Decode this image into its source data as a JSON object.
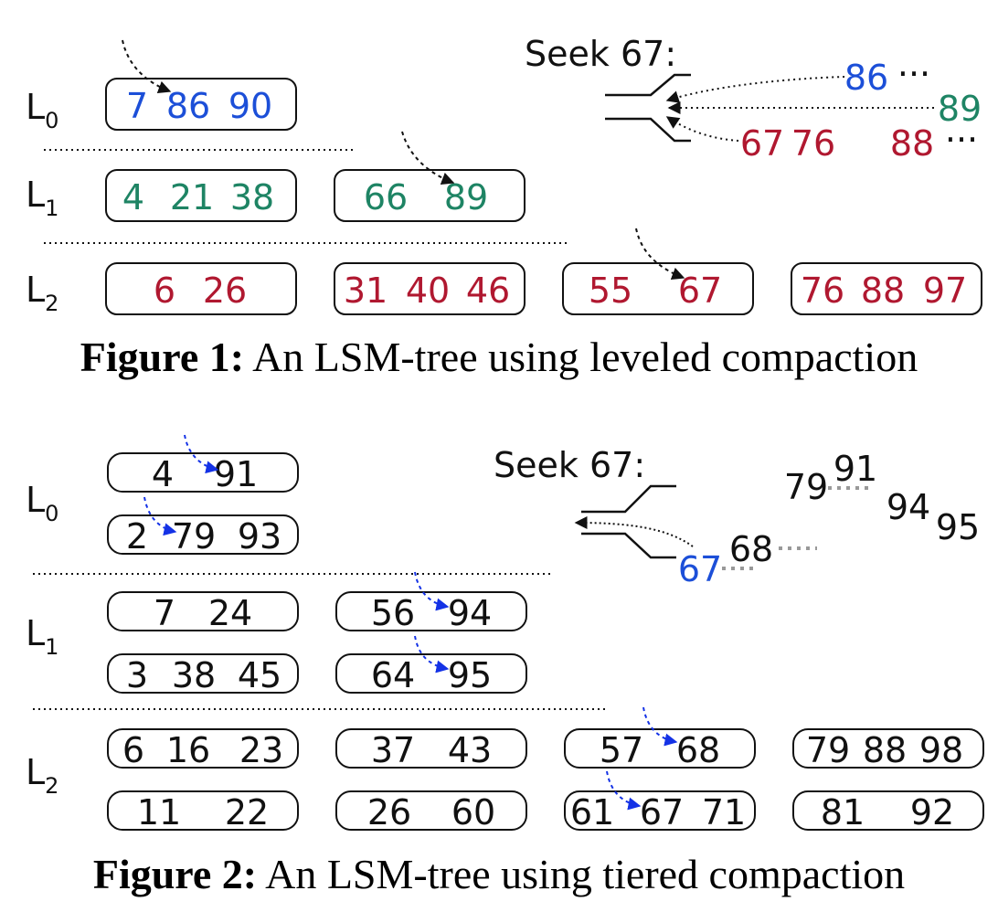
{
  "colors": {
    "L0": "#1c4fd8",
    "L1": "#1e8464",
    "L2": "#b01830",
    "plain": "#111111",
    "seek_arrow": "#1432e6",
    "gray_dots": "#999999"
  },
  "figure1": {
    "caption_bold": "Figure 1:",
    "caption_text": "An LSM-tree using leveled compaction",
    "seek_label": "Seek 67:",
    "levels": [
      {
        "name": "L",
        "sub": "0",
        "runs": [
          [
            "7",
            "86",
            "90"
          ]
        ]
      },
      {
        "name": "L",
        "sub": "1",
        "runs": [
          [
            "4",
            "21",
            "38"
          ],
          [
            "66",
            "89"
          ]
        ]
      },
      {
        "name": "L",
        "sub": "2",
        "runs": [
          [
            "6",
            "26"
          ],
          [
            "31",
            "40",
            "46"
          ],
          [
            "55",
            "67"
          ],
          [
            "76",
            "88",
            "97"
          ]
        ]
      }
    ],
    "merge_inputs": [
      {
        "keys": [
          "86"
        ],
        "trail": "···"
      },
      {
        "keys": [
          "89"
        ],
        "trail": ""
      },
      {
        "keys": [
          "67",
          "76",
          "88"
        ],
        "trail": "···"
      }
    ]
  },
  "figure2": {
    "caption_bold": "Figure 2:",
    "caption_text": "An LSM-tree using tiered compaction",
    "seek_label": "Seek 67:",
    "levels": [
      {
        "name": "L",
        "sub": "0",
        "runs": [
          [
            [
              "4",
              "91"
            ]
          ],
          [
            [
              "2",
              "79",
              "93"
            ]
          ]
        ]
      },
      {
        "name": "L",
        "sub": "1",
        "runs": [
          [
            [
              "7",
              "24"
            ],
            [
              "56",
              "94"
            ]
          ],
          [
            [
              "3",
              "38",
              "45"
            ],
            [
              "64",
              "95"
            ]
          ]
        ]
      },
      {
        "name": "L",
        "sub": "2",
        "runs": [
          [
            [
              "6",
              "16",
              "23"
            ],
            [
              "37",
              "43"
            ],
            [
              "57",
              "68"
            ],
            [
              "79",
              "88",
              "98"
            ]
          ],
          [
            [
              "11",
              "22"
            ],
            [
              "26",
              "60"
            ],
            [
              "61",
              "67",
              "71"
            ],
            [
              "81",
              "92"
            ]
          ]
        ]
      }
    ],
    "merge_keys": {
      "seek_key": "67",
      "next_key": "68",
      "upper": [
        "79",
        "91"
      ],
      "right": [
        "94",
        "95"
      ]
    }
  }
}
